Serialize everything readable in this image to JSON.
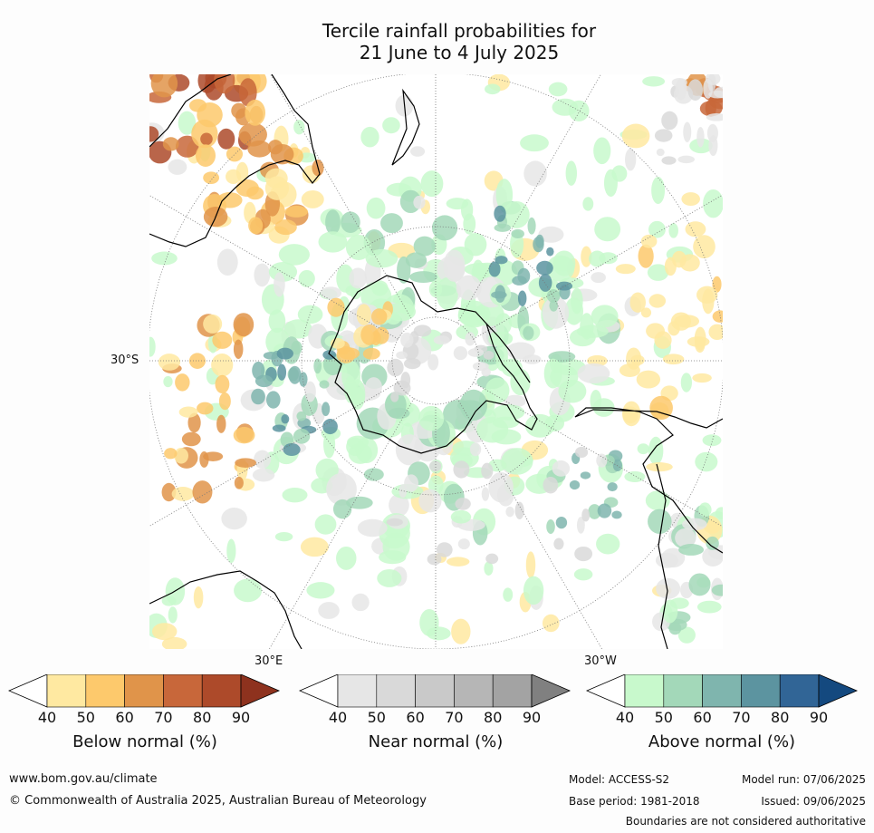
{
  "title": {
    "line1": "Tercile rainfall probabilities for",
    "line2": "21 June to 4 July 2025"
  },
  "map": {
    "projection": "south polar stereographic",
    "lat_label": "30°S",
    "lon_labels": {
      "east": "30°E",
      "west": "30°W"
    }
  },
  "legends": [
    {
      "id": "below",
      "label": "Below normal (%)",
      "ticks": [
        "40",
        "50",
        "60",
        "70",
        "80",
        "90"
      ],
      "colors": [
        "#ffffff",
        "#ffe9a1",
        "#fdc96c",
        "#e0944a",
        "#c8673a",
        "#ad4a2a",
        "#8e321e"
      ]
    },
    {
      "id": "near",
      "label": "Near normal (%)",
      "ticks": [
        "40",
        "50",
        "60",
        "70",
        "80",
        "90"
      ],
      "colors": [
        "#ffffff",
        "#e6e6e6",
        "#d9d9d9",
        "#c9c9c9",
        "#b6b6b6",
        "#a3a3a3",
        "#808080"
      ]
    },
    {
      "id": "above",
      "label": "Above normal (%)",
      "ticks": [
        "40",
        "50",
        "60",
        "70",
        "80",
        "90"
      ],
      "colors": [
        "#ffffff",
        "#c8f9cc",
        "#a3d8b9",
        "#7fb5ae",
        "#5c94a0",
        "#316596",
        "#14497f"
      ]
    }
  ],
  "footer": {
    "website": "www.bom.gov.au/climate",
    "copyright": "© Commonwealth of Australia 2025, Australian Bureau of Meteorology",
    "model": "Model: ACCESS-S2",
    "base_period": "Base period: 1981-2018",
    "model_run": "Model run: 07/06/2025",
    "issued": "Issued: 09/06/2025",
    "disclaimer": "Boundaries are not considered authoritative"
  }
}
